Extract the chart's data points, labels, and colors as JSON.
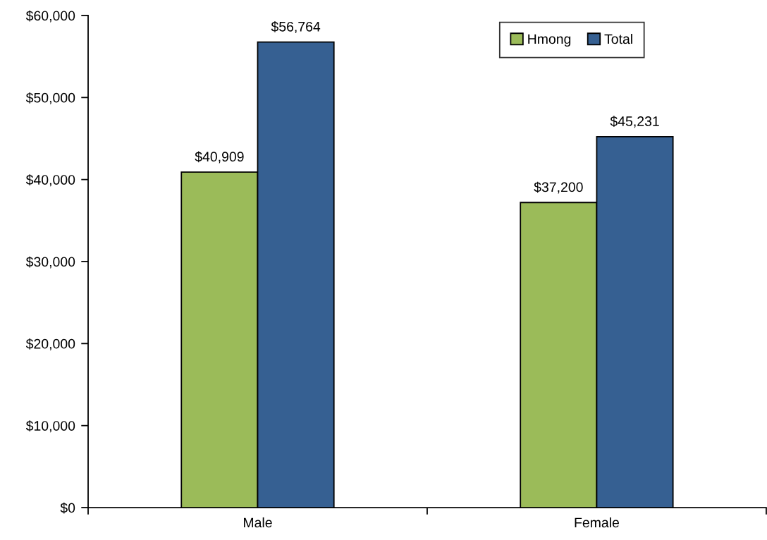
{
  "chart_data": {
    "type": "bar",
    "categories": [
      "Male",
      "Female"
    ],
    "series": [
      {
        "name": "Hmong",
        "color": "#9bbb59",
        "values": [
          40909,
          37200
        ],
        "value_labels": [
          "$40,909",
          "$37,200"
        ]
      },
      {
        "name": "Total",
        "color": "#366092",
        "values": [
          56764,
          45231
        ],
        "value_labels": [
          "$56,764",
          "$45,231"
        ]
      }
    ],
    "ylim": [
      0,
      60000
    ],
    "yticks": [
      {
        "value": 0,
        "label": "$0"
      },
      {
        "value": 10000,
        "label": "$10,000"
      },
      {
        "value": 20000,
        "label": "$20,000"
      },
      {
        "value": 30000,
        "label": "$30,000"
      },
      {
        "value": 40000,
        "label": "$40,000"
      },
      {
        "value": 50000,
        "label": "$50,000"
      },
      {
        "value": 60000,
        "label": "$60,000"
      }
    ],
    "grid": false,
    "legend": "top right"
  }
}
